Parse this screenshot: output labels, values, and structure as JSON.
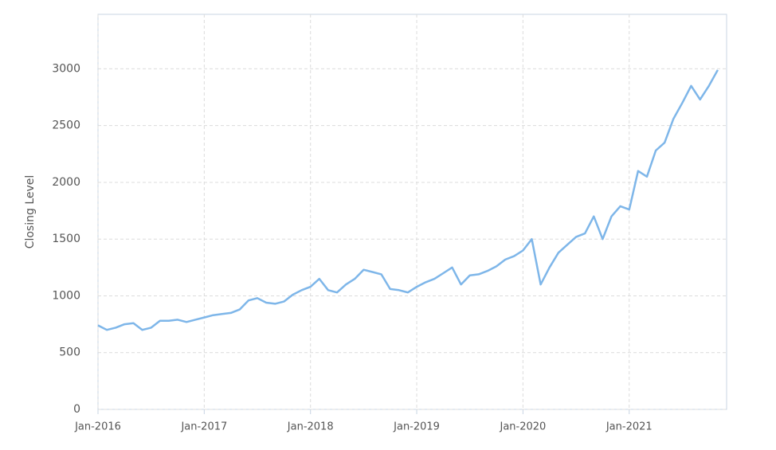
{
  "chart_data": {
    "type": "line",
    "y_label": "Closing Level",
    "x": [
      "2016-01",
      "2016-02",
      "2016-03",
      "2016-04",
      "2016-05",
      "2016-06",
      "2016-07",
      "2016-08",
      "2016-09",
      "2016-10",
      "2016-11",
      "2016-12",
      "2017-01",
      "2017-02",
      "2017-03",
      "2017-04",
      "2017-05",
      "2017-06",
      "2017-07",
      "2017-08",
      "2017-09",
      "2017-10",
      "2017-11",
      "2017-12",
      "2018-01",
      "2018-02",
      "2018-03",
      "2018-04",
      "2018-05",
      "2018-06",
      "2018-07",
      "2018-08",
      "2018-09",
      "2018-10",
      "2018-11",
      "2018-12",
      "2019-01",
      "2019-02",
      "2019-03",
      "2019-04",
      "2019-05",
      "2019-06",
      "2019-07",
      "2019-08",
      "2019-09",
      "2019-10",
      "2019-11",
      "2019-12",
      "2020-01",
      "2020-02",
      "2020-03",
      "2020-04",
      "2020-05",
      "2020-06",
      "2020-07",
      "2020-08",
      "2020-09",
      "2020-10",
      "2020-11",
      "2020-12",
      "2021-01",
      "2021-02",
      "2021-03",
      "2021-04",
      "2021-05",
      "2021-06",
      "2021-07",
      "2021-08",
      "2021-09",
      "2021-10",
      "2021-11"
    ],
    "values": [
      740,
      700,
      720,
      750,
      760,
      700,
      720,
      780,
      780,
      790,
      770,
      790,
      810,
      830,
      840,
      850,
      880,
      960,
      980,
      940,
      930,
      950,
      1010,
      1050,
      1080,
      1150,
      1050,
      1030,
      1100,
      1150,
      1230,
      1210,
      1190,
      1060,
      1050,
      1030,
      1080,
      1120,
      1150,
      1200,
      1250,
      1100,
      1180,
      1190,
      1220,
      1260,
      1320,
      1350,
      1400,
      1500,
      1100,
      1250,
      1380,
      1450,
      1520,
      1550,
      1700,
      1500,
      1700,
      1790,
      1760,
      2100,
      2050,
      2280,
      2350,
      2560,
      2700,
      2850,
      2730,
      2850,
      2990
    ],
    "color": "#7eb6e9",
    "xlim": [
      "2016-01",
      "2021-12"
    ],
    "xticks": [
      {
        "value": "2016-01",
        "label": "Jan-2016"
      },
      {
        "value": "2017-01",
        "label": "Jan-2017"
      },
      {
        "value": "2018-01",
        "label": "Jan-2018"
      },
      {
        "value": "2019-01",
        "label": "Jan-2019"
      },
      {
        "value": "2020-01",
        "label": "Jan-2020"
      },
      {
        "value": "2021-01",
        "label": "Jan-2021"
      }
    ],
    "ylim": [
      0,
      3480
    ],
    "yticks": [
      0,
      500,
      1000,
      1500,
      2000,
      2500,
      3000
    ],
    "grid": true
  }
}
